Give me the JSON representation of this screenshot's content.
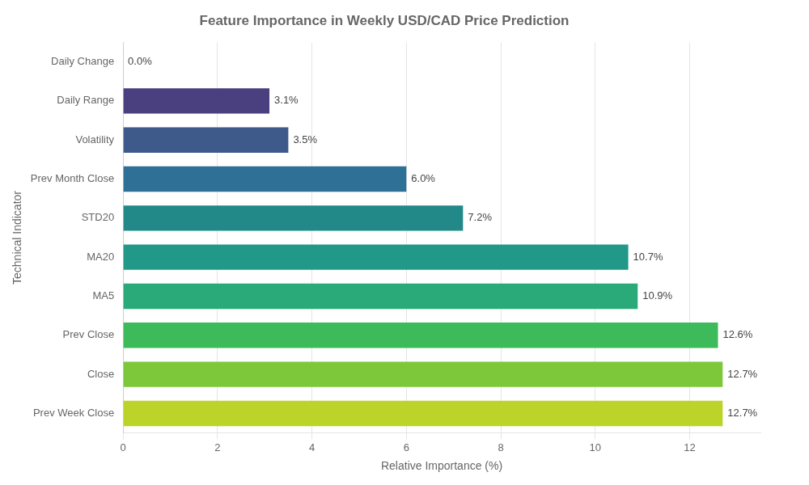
{
  "chart_data": {
    "type": "bar",
    "orientation": "horizontal",
    "title": "Feature Importance in Weekly USD/CAD Price Prediction",
    "xlabel": "Relative Importance (%)",
    "ylabel": "Technical Indicator",
    "categories": [
      "Daily Change",
      "Daily Range",
      "Volatility",
      "Prev Month Close",
      "STD20",
      "MA20",
      "MA5",
      "Prev Close",
      "Close",
      "Prev Week Close"
    ],
    "values": [
      0.0,
      3.1,
      3.5,
      6.0,
      7.2,
      10.7,
      10.9,
      12.6,
      12.7,
      12.7
    ],
    "value_labels": [
      "0.0%",
      "3.1%",
      "3.5%",
      "6.0%",
      "7.2%",
      "10.7%",
      "10.9%",
      "12.6%",
      "12.7%",
      "12.7%"
    ],
    "colors": [
      "#e8eaf0",
      "#4a4080",
      "#3d5a8a",
      "#2e7096",
      "#228888",
      "#229988",
      "#2aaa78",
      "#3dba5a",
      "#7dc83a",
      "#bcd42a"
    ],
    "xlim": [
      0,
      13.5
    ],
    "xticks": [
      0,
      2,
      4,
      6,
      8,
      10,
      12
    ],
    "grid": true,
    "data_labels": true
  }
}
